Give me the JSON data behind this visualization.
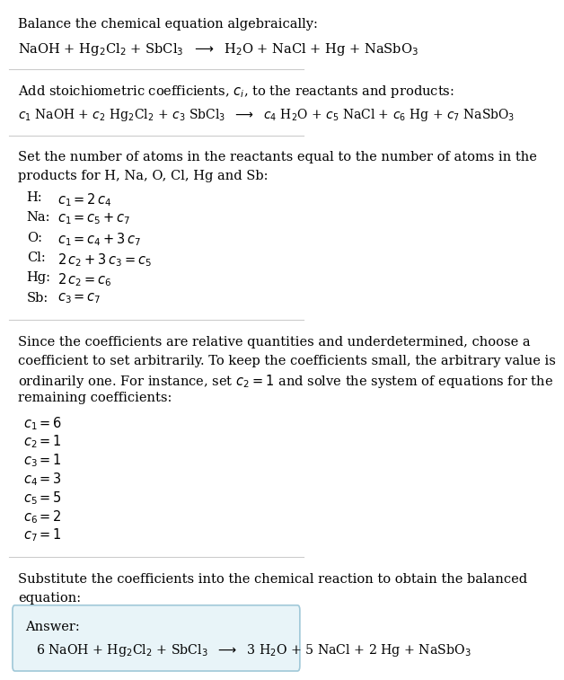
{
  "title_section": "Balance the chemical equation algebraically:",
  "equation_line": "NaOH + Hg$_2$Cl$_2$ + SbCl$_3$  $\\longrightarrow$  H$_2$O + NaCl + Hg + NaSbO$_3$",
  "section2_title": "Add stoichiometric coefficients, $c_i$, to the reactants and products:",
  "equation2_line": "$c_1$ NaOH + $c_2$ Hg$_2$Cl$_2$ + $c_3$ SbCl$_3$  $\\longrightarrow$  $c_4$ H$_2$O + $c_5$ NaCl + $c_6$ Hg + $c_7$ NaSbO$_3$",
  "section3_title_1": "Set the number of atoms in the reactants equal to the number of atoms in the",
  "section3_title_2": "products for H, Na, O, Cl, Hg and Sb:",
  "equations": [
    [
      "H:",
      "$c_1 = 2\\,c_4$"
    ],
    [
      "Na:",
      "$c_1 = c_5 + c_7$"
    ],
    [
      "O:",
      "$c_1 = c_4 + 3\\,c_7$"
    ],
    [
      "Cl:",
      "$2\\,c_2 + 3\\,c_3 = c_5$"
    ],
    [
      "Hg:",
      "$2\\,c_2 = c_6$"
    ],
    [
      "Sb:",
      "$c_3 = c_7$"
    ]
  ],
  "section4_title_1": "Since the coefficients are relative quantities and underdetermined, choose a",
  "section4_title_2": "coefficient to set arbitrarily. To keep the coefficients small, the arbitrary value is",
  "section4_title_3": "ordinarily one. For instance, set $c_2 = 1$ and solve the system of equations for the",
  "section4_title_4": "remaining coefficients:",
  "coefficients": [
    "$c_1 = 6$",
    "$c_2 = 1$",
    "$c_3 = 1$",
    "$c_4 = 3$",
    "$c_5 = 5$",
    "$c_6 = 2$",
    "$c_7 = 1$"
  ],
  "section5_title_1": "Substitute the coefficients into the chemical reaction to obtain the balanced",
  "section5_title_2": "equation:",
  "answer_label": "Answer:",
  "answer_line": "6 NaOH + Hg$_2$Cl$_2$ + SbCl$_3$  $\\longrightarrow$  3 H$_2$O + 5 NaCl + 2 Hg + NaSbO$_3$",
  "bg_color": "#ffffff",
  "answer_box_color": "#e8f4f8",
  "answer_box_edge": "#a0c8d8",
  "text_color": "#000000",
  "font_size": 10.5,
  "line_sep": "#cccccc"
}
